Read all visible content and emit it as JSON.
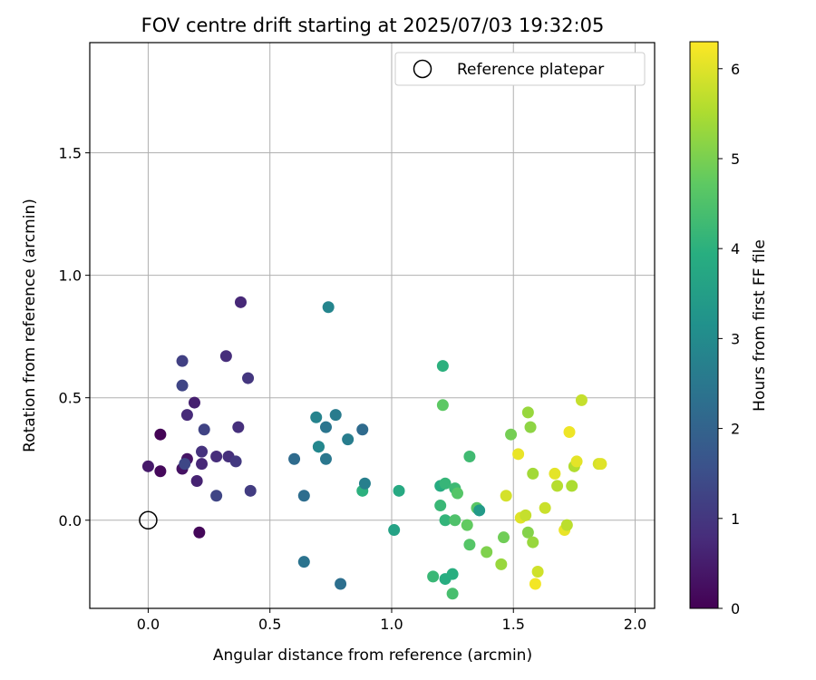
{
  "chart_data": {
    "type": "scatter",
    "title": "FOV centre drift starting at 2025/07/03 19:32:05",
    "xlabel": "Angular distance from reference (arcmin)",
    "ylabel": "Rotation from reference (arcmin)",
    "colorbar_label": "Hours from first FF file",
    "xlim": [
      -0.24,
      2.08
    ],
    "ylim": [
      -0.36,
      1.95
    ],
    "clim": [
      0,
      6.3
    ],
    "xticks": [
      0.0,
      0.5,
      1.0,
      1.5,
      2.0
    ],
    "xtick_labels": [
      "0.0",
      "0.5",
      "1.0",
      "1.5",
      "2.0"
    ],
    "yticks": [
      0.0,
      0.5,
      1.0,
      1.5
    ],
    "ytick_labels": [
      "0.0",
      "0.5",
      "1.0",
      "1.5"
    ],
    "cticks": [
      0,
      1,
      2,
      3,
      4,
      5,
      6
    ],
    "ctick_labels": [
      "0",
      "1",
      "2",
      "3",
      "4",
      "5",
      "6"
    ],
    "grid": true,
    "colormap": "viridis",
    "legend": {
      "placement": "top-right",
      "entries": [
        "Reference platepar"
      ]
    },
    "reference_point": {
      "x": 0.0,
      "y": 0.0,
      "label": "Reference platepar"
    },
    "points": [
      {
        "x": 0.05,
        "y": 0.35,
        "t": 0.05
      },
      {
        "x": 0.05,
        "y": 0.2,
        "t": 0.15
      },
      {
        "x": 0.21,
        "y": -0.05,
        "t": 0.1
      },
      {
        "x": 0.0,
        "y": 0.22,
        "t": 0.45
      },
      {
        "x": 0.14,
        "y": 0.21,
        "t": 0.3
      },
      {
        "x": 0.16,
        "y": 0.25,
        "t": 0.35
      },
      {
        "x": 0.19,
        "y": 0.48,
        "t": 0.55
      },
      {
        "x": 0.16,
        "y": 0.43,
        "t": 0.75
      },
      {
        "x": 0.2,
        "y": 0.16,
        "t": 0.6
      },
      {
        "x": 0.22,
        "y": 0.23,
        "t": 0.7
      },
      {
        "x": 0.22,
        "y": 0.28,
        "t": 0.9
      },
      {
        "x": 0.28,
        "y": 0.26,
        "t": 0.8
      },
      {
        "x": 0.33,
        "y": 0.26,
        "t": 0.85
      },
      {
        "x": 0.37,
        "y": 0.38,
        "t": 0.85
      },
      {
        "x": 0.38,
        "y": 0.89,
        "t": 0.7
      },
      {
        "x": 0.32,
        "y": 0.67,
        "t": 0.8
      },
      {
        "x": 0.41,
        "y": 0.58,
        "t": 1.0
      },
      {
        "x": 0.14,
        "y": 0.65,
        "t": 1.2
      },
      {
        "x": 0.14,
        "y": 0.55,
        "t": 1.3
      },
      {
        "x": 0.15,
        "y": 0.23,
        "t": 1.35
      },
      {
        "x": 0.23,
        "y": 0.37,
        "t": 1.25
      },
      {
        "x": 0.28,
        "y": 0.1,
        "t": 1.3
      },
      {
        "x": 0.36,
        "y": 0.24,
        "t": 1.05
      },
      {
        "x": 0.42,
        "y": 0.12,
        "t": 1.1
      },
      {
        "x": 0.6,
        "y": 0.25,
        "t": 2.2
      },
      {
        "x": 0.64,
        "y": 0.1,
        "t": 2.25
      },
      {
        "x": 0.64,
        "y": -0.17,
        "t": 2.4
      },
      {
        "x": 0.69,
        "y": 0.42,
        "t": 2.8
      },
      {
        "x": 0.7,
        "y": 0.3,
        "t": 2.95
      },
      {
        "x": 0.7,
        "y": 0.3,
        "t": 2.9
      },
      {
        "x": 0.73,
        "y": 0.38,
        "t": 2.45
      },
      {
        "x": 0.73,
        "y": 0.25,
        "t": 2.5
      },
      {
        "x": 0.77,
        "y": 0.43,
        "t": 2.6
      },
      {
        "x": 0.74,
        "y": 0.87,
        "t": 2.85
      },
      {
        "x": 0.79,
        "y": -0.26,
        "t": 2.3
      },
      {
        "x": 0.82,
        "y": 0.33,
        "t": 2.65
      },
      {
        "x": 0.88,
        "y": 0.37,
        "t": 2.2
      },
      {
        "x": 0.88,
        "y": 0.12,
        "t": 4.0
      },
      {
        "x": 0.89,
        "y": 0.15,
        "t": 2.7
      },
      {
        "x": 1.01,
        "y": -0.04,
        "t": 3.6
      },
      {
        "x": 1.03,
        "y": 0.12,
        "t": 3.8
      },
      {
        "x": 1.17,
        "y": -0.23,
        "t": 4.2
      },
      {
        "x": 1.2,
        "y": 0.14,
        "t": 3.85
      },
      {
        "x": 1.21,
        "y": 0.63,
        "t": 4.0
      },
      {
        "x": 1.21,
        "y": 0.47,
        "t": 4.7
      },
      {
        "x": 1.2,
        "y": 0.06,
        "t": 4.2
      },
      {
        "x": 1.22,
        "y": 0.15,
        "t": 4.15
      },
      {
        "x": 1.22,
        "y": 0.0,
        "t": 4.1
      },
      {
        "x": 1.22,
        "y": -0.24,
        "t": 3.9
      },
      {
        "x": 1.25,
        "y": -0.22,
        "t": 3.95
      },
      {
        "x": 1.26,
        "y": 0.13,
        "t": 4.25
      },
      {
        "x": 1.27,
        "y": 0.11,
        "t": 4.6
      },
      {
        "x": 1.26,
        "y": 0.0,
        "t": 4.5
      },
      {
        "x": 1.25,
        "y": -0.3,
        "t": 4.4
      },
      {
        "x": 1.32,
        "y": 0.26,
        "t": 4.3
      },
      {
        "x": 1.31,
        "y": -0.02,
        "t": 4.75
      },
      {
        "x": 1.32,
        "y": -0.1,
        "t": 4.6
      },
      {
        "x": 1.35,
        "y": 0.05,
        "t": 4.65
      },
      {
        "x": 1.36,
        "y": 0.04,
        "t": 3.4
      },
      {
        "x": 1.39,
        "y": -0.13,
        "t": 5.05
      },
      {
        "x": 1.46,
        "y": -0.07,
        "t": 4.9
      },
      {
        "x": 1.45,
        "y": -0.18,
        "t": 5.3
      },
      {
        "x": 1.49,
        "y": 0.35,
        "t": 4.95
      },
      {
        "x": 1.47,
        "y": 0.1,
        "t": 5.9
      },
      {
        "x": 1.52,
        "y": 0.27,
        "t": 6.1
      },
      {
        "x": 1.53,
        "y": 0.01,
        "t": 6.0
      },
      {
        "x": 1.55,
        "y": 0.02,
        "t": 5.75
      },
      {
        "x": 1.56,
        "y": 0.44,
        "t": 5.3
      },
      {
        "x": 1.57,
        "y": 0.38,
        "t": 5.2
      },
      {
        "x": 1.58,
        "y": 0.19,
        "t": 5.4
      },
      {
        "x": 1.56,
        "y": -0.05,
        "t": 5.1
      },
      {
        "x": 1.58,
        "y": -0.09,
        "t": 5.3
      },
      {
        "x": 1.59,
        "y": -0.26,
        "t": 6.2
      },
      {
        "x": 1.6,
        "y": -0.21,
        "t": 5.85
      },
      {
        "x": 1.63,
        "y": 0.05,
        "t": 5.8
      },
      {
        "x": 1.67,
        "y": 0.19,
        "t": 6.05
      },
      {
        "x": 1.68,
        "y": 0.14,
        "t": 5.6
      },
      {
        "x": 1.71,
        "y": -0.04,
        "t": 6.1
      },
      {
        "x": 1.72,
        "y": -0.02,
        "t": 5.65
      },
      {
        "x": 1.73,
        "y": 0.36,
        "t": 6.15
      },
      {
        "x": 1.74,
        "y": 0.14,
        "t": 5.5
      },
      {
        "x": 1.75,
        "y": 0.22,
        "t": 5.55
      },
      {
        "x": 1.76,
        "y": 0.24,
        "t": 6.05
      },
      {
        "x": 1.78,
        "y": 0.49,
        "t": 5.75
      },
      {
        "x": 1.85,
        "y": 0.23,
        "t": 5.9
      },
      {
        "x": 1.86,
        "y": 0.23,
        "t": 6.0
      }
    ]
  }
}
